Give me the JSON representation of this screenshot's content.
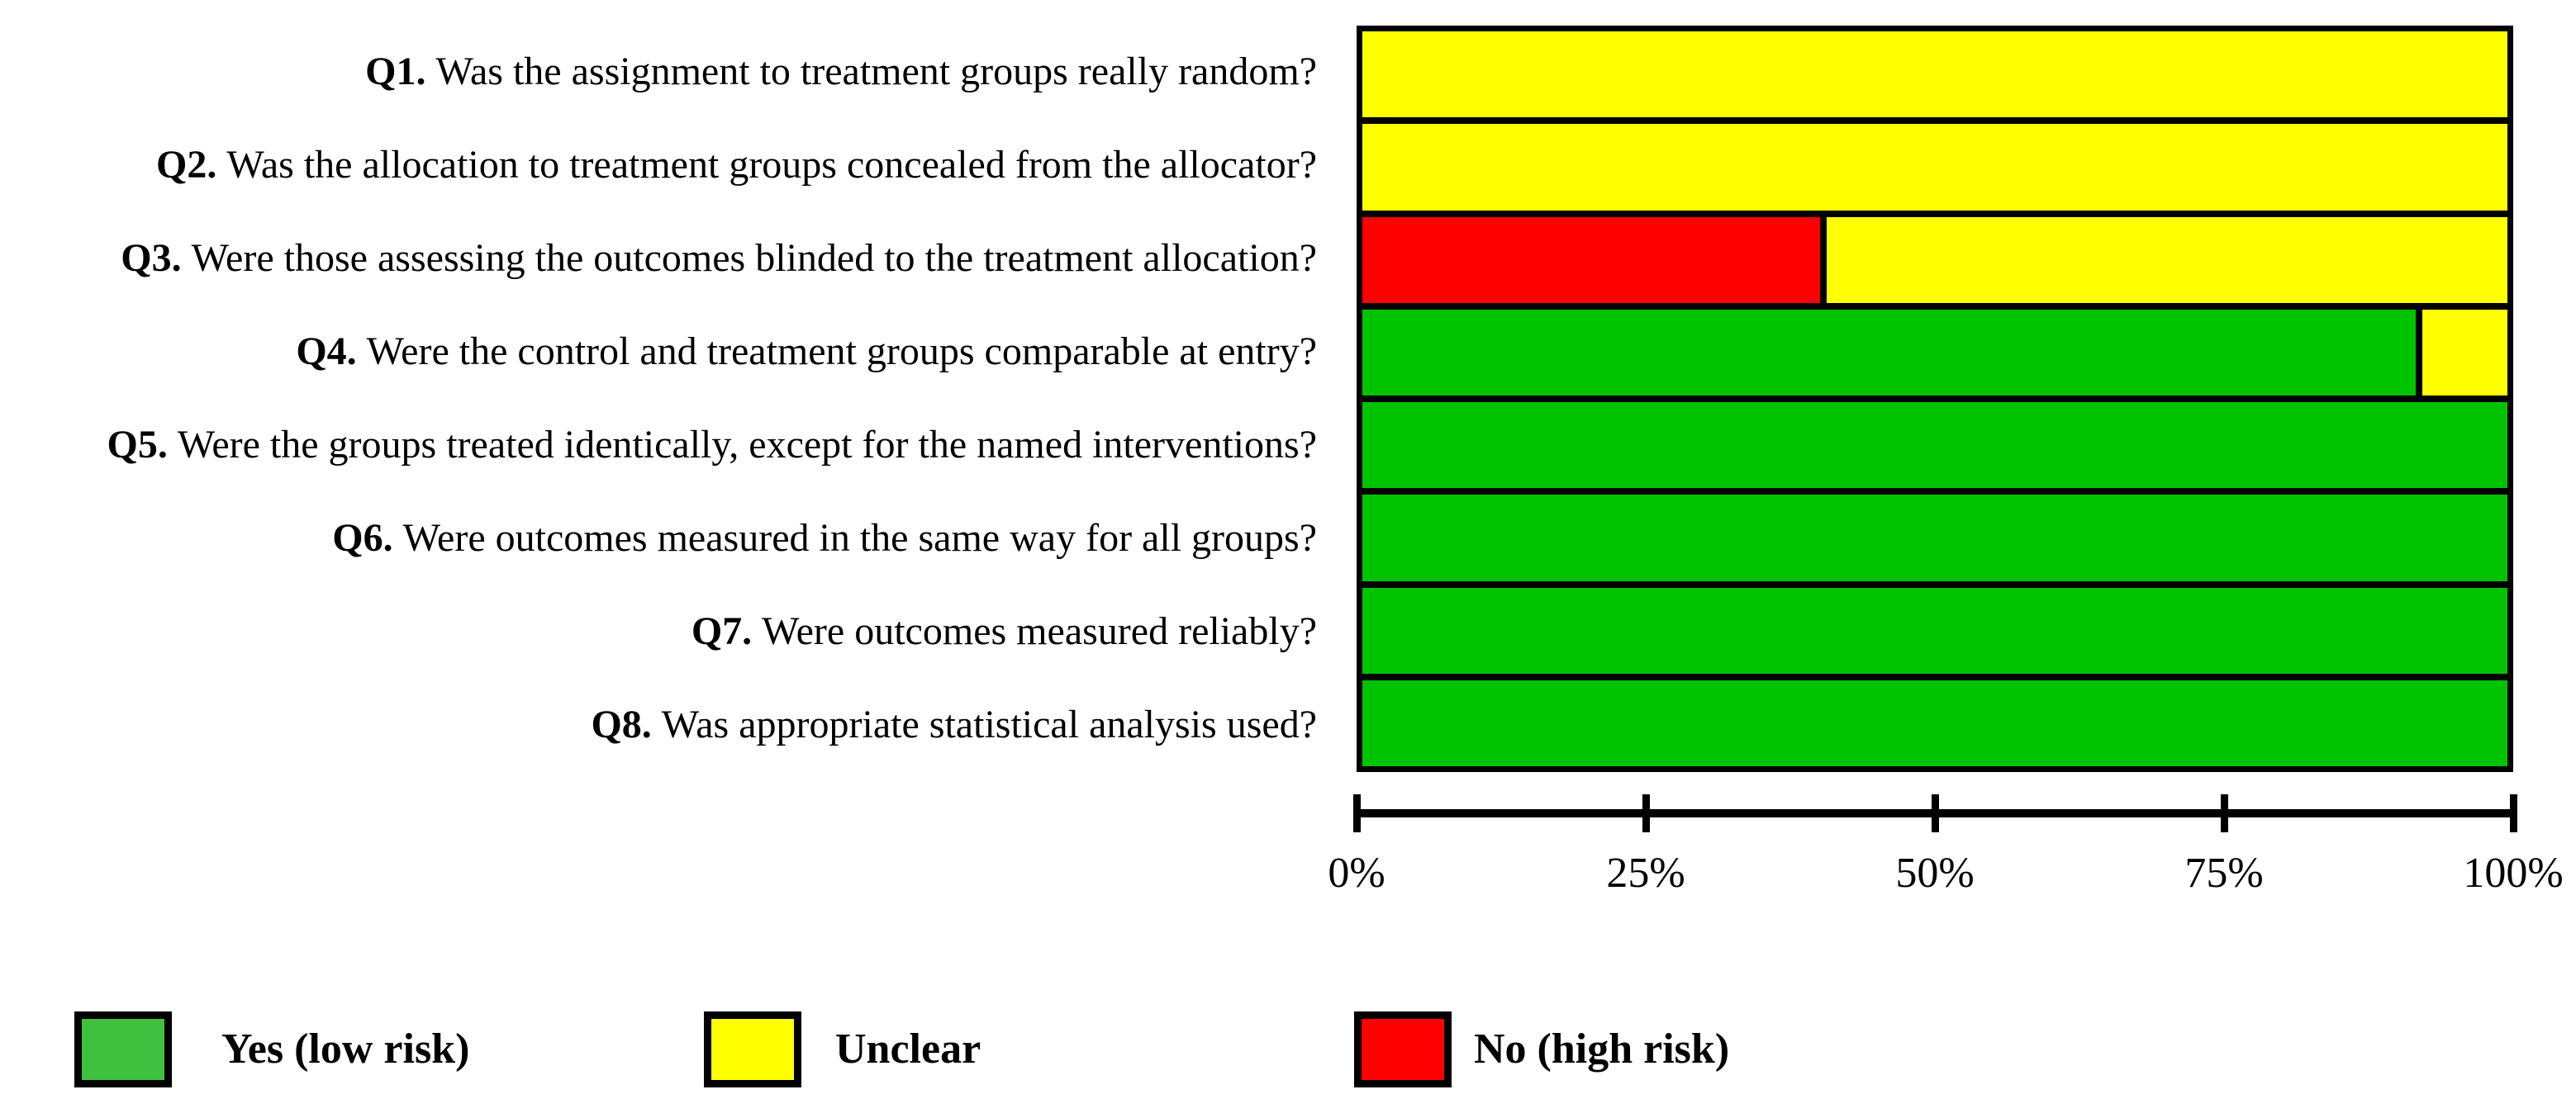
{
  "chart_data": {
    "type": "bar",
    "orientation": "horizontal-stacked",
    "title": "",
    "xlabel": "",
    "ylabel": "",
    "xlim": [
      0,
      100
    ],
    "grid": false,
    "legend_position": "bottom",
    "axis_tick_labels": [
      "0%",
      "25%",
      "50%",
      "75%",
      "100%"
    ],
    "categories": [
      {
        "num": "Q1.",
        "text": "Was the assignment to treatment groups really random?"
      },
      {
        "num": "Q2.",
        "text": "Was the allocation to treatment groups concealed from the allocator?"
      },
      {
        "num": "Q3.",
        "text": "Were those assessing the outcomes blinded to the treatment allocation?"
      },
      {
        "num": "Q4.",
        "text": "Were the control and treatment groups comparable at entry?"
      },
      {
        "num": "Q5.",
        "text": "Were the groups treated identically, except for the named interventions?"
      },
      {
        "num": "Q6.",
        "text": "Were outcomes measured in the same way for all groups?"
      },
      {
        "num": "Q7.",
        "text": "Were outcomes measured reliably?"
      },
      {
        "num": "Q8.",
        "text": "Was appropriate statistical analysis used?"
      }
    ],
    "series": [
      {
        "key": "yes",
        "name": "Yes (low risk)",
        "color": "#00C300",
        "values": [
          0,
          0,
          0,
          92,
          100,
          100,
          100,
          100
        ]
      },
      {
        "key": "no",
        "name": "No (high risk)",
        "color": "#FF0000",
        "values": [
          0,
          0,
          40,
          0,
          0,
          0,
          0,
          0
        ]
      },
      {
        "key": "unclear",
        "name": "Unclear",
        "color": "#FFFF00",
        "values": [
          100,
          100,
          60,
          8,
          0,
          0,
          0,
          0
        ]
      }
    ]
  },
  "legend": {
    "items": [
      {
        "label": "Yes (low risk)",
        "color": "#3FC13F"
      },
      {
        "label": "Unclear",
        "color": "#FFFF00"
      },
      {
        "label": "No (high risk)",
        "color": "#FF0000"
      }
    ]
  }
}
